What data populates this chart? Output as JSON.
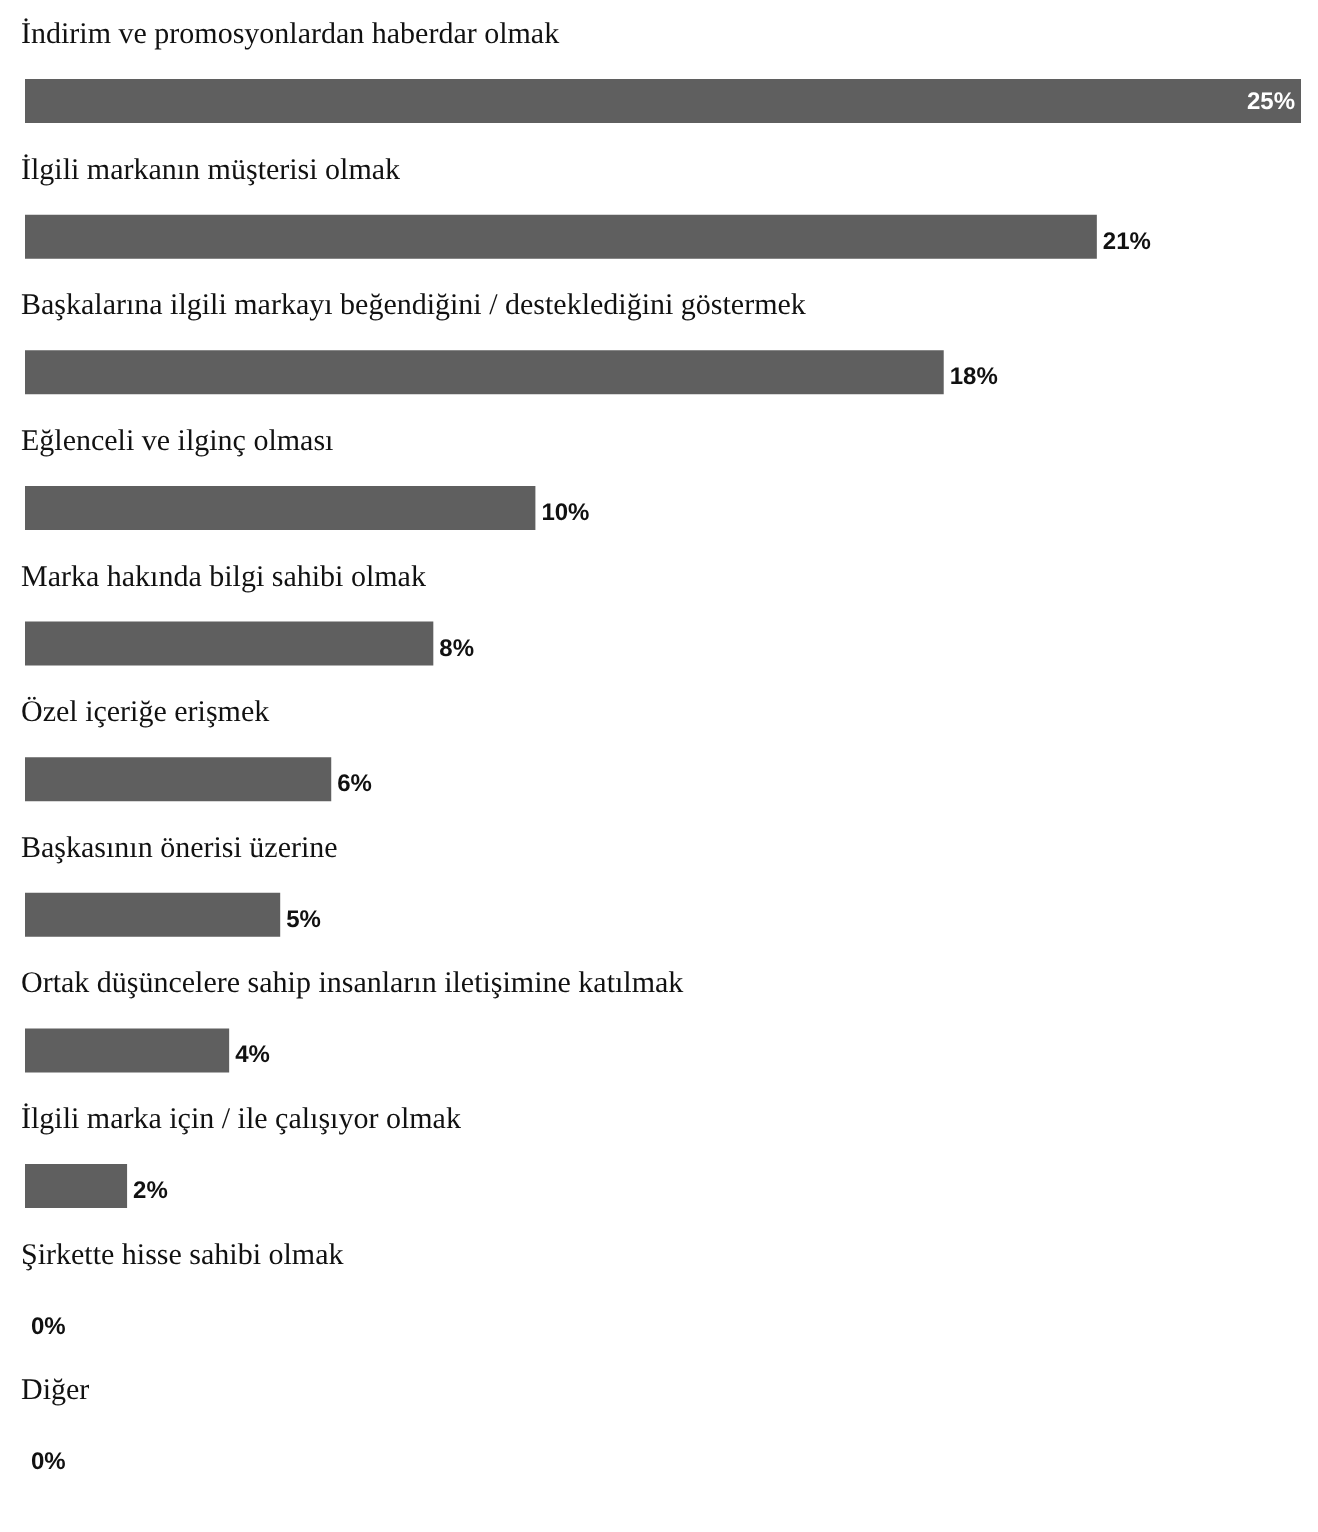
{
  "chart_data": {
    "type": "bar",
    "orientation": "horizontal",
    "categories": [
      "İndirim ve promosyonlardan haberdar olmak",
      "İlgili markanın müşterisi olmak",
      "Başkalarına ilgili markayı beğendiğini / desteklediğini göstermek",
      "Eğlenceli ve ilginç olması",
      "Marka hakında bilgi sahibi olmak",
      "Özel içeriğe erişmek",
      "Başkasının önerisi üzerine",
      "Ortak düşüncelere sahip insanların iletişimine katılmak",
      "İlgili marka için / ile çalışıyor olmak",
      "Şirkette hisse sahibi olmak",
      "Diğer"
    ],
    "values": [
      25,
      21,
      18,
      10,
      8,
      6,
      5,
      4,
      2,
      0,
      0
    ],
    "value_labels": [
      "25%",
      "21%",
      "18%",
      "10%",
      "8%",
      "6%",
      "5%",
      "4%",
      "2%",
      "0%",
      "0%"
    ],
    "color": "#5f5f5f"
  }
}
